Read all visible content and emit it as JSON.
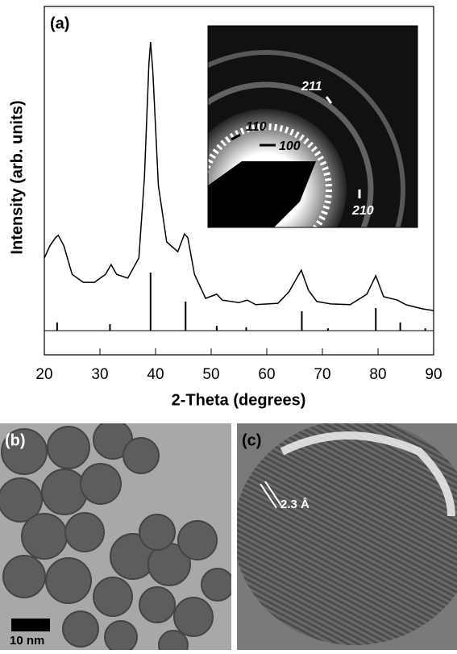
{
  "chart_data": {
    "type": "line",
    "panel_label": "(a)",
    "x_label": "2-Theta (degrees)",
    "y_label": "Intensity (arb. units)",
    "xlim": [
      20,
      90
    ],
    "xticks": [
      20,
      30,
      40,
      50,
      60,
      70,
      80,
      90
    ],
    "ylim": [
      0,
      100
    ],
    "color": "#000000",
    "x": [
      20,
      21,
      22,
      22.5,
      23.5,
      25,
      27,
      29,
      31,
      32,
      33,
      35,
      37,
      38,
      38.8,
      39.1,
      39.5,
      40.5,
      42,
      44,
      45.2,
      45.8,
      47,
      49,
      51,
      52,
      55,
      56.5,
      58,
      62,
      64,
      66.2,
      67.5,
      69,
      71.5,
      75,
      78,
      79.6,
      81,
      83.5,
      85,
      88,
      90
    ],
    "values": [
      27.8,
      31.3,
      33.6,
      34.3,
      31.3,
      23.1,
      20.8,
      20.8,
      23.1,
      25.9,
      23.1,
      22.0,
      27.8,
      50.9,
      83.3,
      89.8,
      81.5,
      48.6,
      32.4,
      29.6,
      34.7,
      33.6,
      23.1,
      16.2,
      17.4,
      15.7,
      15.0,
      15.7,
      14.4,
      14.8,
      18.1,
      24.3,
      18.5,
      15.3,
      14.6,
      14.4,
      17.4,
      22.7,
      16.7,
      15.7,
      14.4,
      13.2,
      12.7
    ],
    "reference": {
      "x": [
        22.3,
        31.8,
        39.1,
        45.4,
        51,
        56.3,
        66.3,
        71,
        79.6,
        84,
        88.5
      ],
      "values": [
        9.3,
        8.8,
        23.6,
        15.3,
        8.3,
        7.9,
        12.5,
        7.6,
        13.4,
        9.3,
        7.6
      ]
    },
    "inset_labels": [
      "211",
      "110",
      "100",
      "210"
    ]
  },
  "panels": [
    {
      "label": "(b)",
      "scale_bar": "10 nm"
    },
    {
      "label": "(c)",
      "annotation": "2.3 Å"
    }
  ]
}
